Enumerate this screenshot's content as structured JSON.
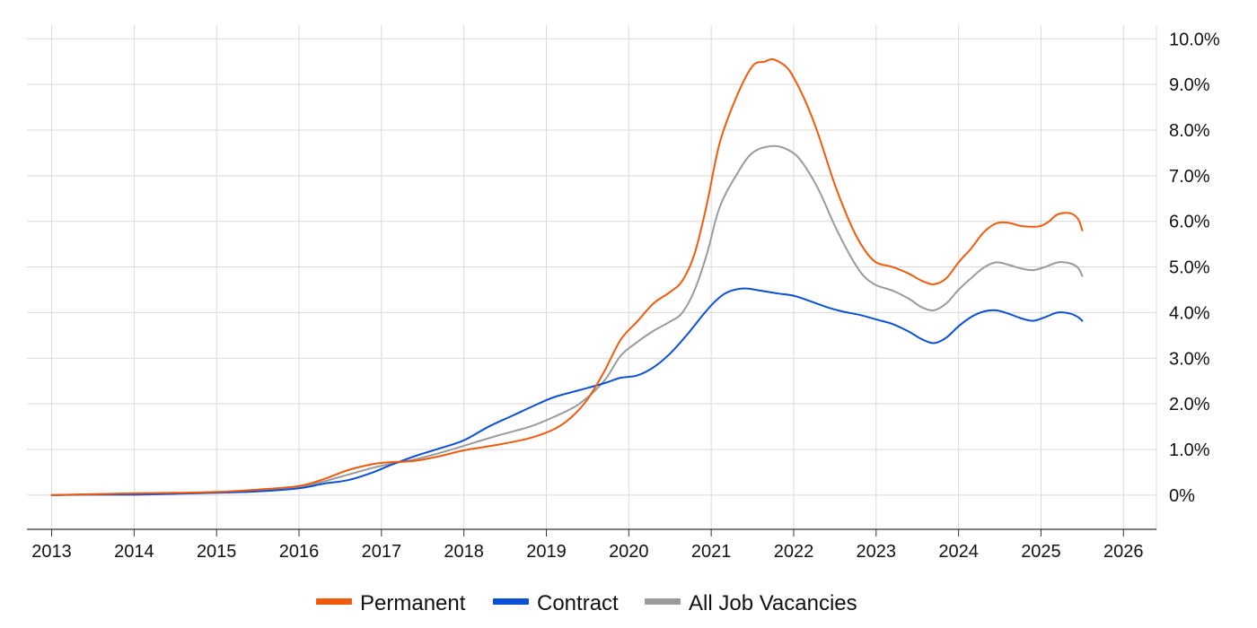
{
  "chart_data": {
    "type": "line",
    "title": "",
    "xlabel": "",
    "ylabel": "",
    "xlim": [
      2012.7,
      2026.4
    ],
    "ylim": [
      -0.75,
      10.3
    ],
    "x_ticks": [
      2013,
      2014,
      2015,
      2016,
      2017,
      2018,
      2019,
      2020,
      2021,
      2022,
      2023,
      2024,
      2025,
      2026
    ],
    "x_tick_labels": [
      "2013",
      "2014",
      "2015",
      "2016",
      "2017",
      "2018",
      "2019",
      "2020",
      "2021",
      "2022",
      "2023",
      "2024",
      "2025",
      "2026"
    ],
    "y_ticks": [
      0,
      1,
      2,
      3,
      4,
      5,
      6,
      7,
      8,
      9,
      10
    ],
    "y_tick_labels": [
      "0%",
      "1.0%",
      "2.0%",
      "3.0%",
      "4.0%",
      "5.0%",
      "6.0%",
      "7.0%",
      "8.0%",
      "9.0%",
      "10.0%"
    ],
    "y_axis_side": "right",
    "grid": true,
    "legend_position": "bottom-center",
    "series": [
      {
        "name": "Permanent",
        "color": "#f15a0a",
        "points": [
          [
            2013.0,
            0.0
          ],
          [
            2013.5,
            0.02
          ],
          [
            2014.0,
            0.04
          ],
          [
            2014.5,
            0.05
          ],
          [
            2015.0,
            0.07
          ],
          [
            2015.5,
            0.12
          ],
          [
            2016.0,
            0.2
          ],
          [
            2016.3,
            0.35
          ],
          [
            2016.6,
            0.55
          ],
          [
            2016.9,
            0.68
          ],
          [
            2017.1,
            0.72
          ],
          [
            2017.4,
            0.75
          ],
          [
            2017.7,
            0.85
          ],
          [
            2018.0,
            0.98
          ],
          [
            2018.4,
            1.1
          ],
          [
            2018.8,
            1.25
          ],
          [
            2019.1,
            1.45
          ],
          [
            2019.3,
            1.7
          ],
          [
            2019.5,
            2.1
          ],
          [
            2019.7,
            2.7
          ],
          [
            2019.9,
            3.4
          ],
          [
            2020.1,
            3.8
          ],
          [
            2020.3,
            4.2
          ],
          [
            2020.5,
            4.45
          ],
          [
            2020.65,
            4.7
          ],
          [
            2020.8,
            5.3
          ],
          [
            2020.95,
            6.4
          ],
          [
            2021.1,
            7.7
          ],
          [
            2021.3,
            8.7
          ],
          [
            2021.5,
            9.4
          ],
          [
            2021.65,
            9.5
          ],
          [
            2021.75,
            9.55
          ],
          [
            2021.9,
            9.4
          ],
          [
            2022.0,
            9.15
          ],
          [
            2022.15,
            8.6
          ],
          [
            2022.3,
            7.9
          ],
          [
            2022.5,
            6.8
          ],
          [
            2022.7,
            5.9
          ],
          [
            2022.85,
            5.4
          ],
          [
            2023.0,
            5.1
          ],
          [
            2023.2,
            5.0
          ],
          [
            2023.4,
            4.85
          ],
          [
            2023.55,
            4.7
          ],
          [
            2023.7,
            4.62
          ],
          [
            2023.85,
            4.75
          ],
          [
            2024.0,
            5.1
          ],
          [
            2024.15,
            5.4
          ],
          [
            2024.3,
            5.75
          ],
          [
            2024.45,
            5.95
          ],
          [
            2024.6,
            5.97
          ],
          [
            2024.75,
            5.9
          ],
          [
            2024.9,
            5.88
          ],
          [
            2025.0,
            5.9
          ],
          [
            2025.1,
            6.0
          ],
          [
            2025.2,
            6.15
          ],
          [
            2025.35,
            6.18
          ],
          [
            2025.45,
            6.05
          ],
          [
            2025.5,
            5.8
          ]
        ]
      },
      {
        "name": "Contract",
        "color": "#0a50d7",
        "points": [
          [
            2013.0,
            0.0
          ],
          [
            2013.5,
            0.01
          ],
          [
            2014.0,
            0.01
          ],
          [
            2014.5,
            0.03
          ],
          [
            2015.0,
            0.05
          ],
          [
            2015.5,
            0.08
          ],
          [
            2016.0,
            0.15
          ],
          [
            2016.3,
            0.25
          ],
          [
            2016.6,
            0.33
          ],
          [
            2016.9,
            0.5
          ],
          [
            2017.1,
            0.65
          ],
          [
            2017.4,
            0.85
          ],
          [
            2017.7,
            1.02
          ],
          [
            2018.0,
            1.2
          ],
          [
            2018.3,
            1.5
          ],
          [
            2018.6,
            1.75
          ],
          [
            2018.9,
            2.0
          ],
          [
            2019.1,
            2.15
          ],
          [
            2019.4,
            2.3
          ],
          [
            2019.7,
            2.45
          ],
          [
            2019.9,
            2.57
          ],
          [
            2020.1,
            2.62
          ],
          [
            2020.3,
            2.8
          ],
          [
            2020.5,
            3.1
          ],
          [
            2020.7,
            3.5
          ],
          [
            2020.9,
            3.95
          ],
          [
            2021.05,
            4.25
          ],
          [
            2021.2,
            4.45
          ],
          [
            2021.4,
            4.53
          ],
          [
            2021.6,
            4.48
          ],
          [
            2021.8,
            4.42
          ],
          [
            2022.0,
            4.37
          ],
          [
            2022.2,
            4.25
          ],
          [
            2022.4,
            4.12
          ],
          [
            2022.6,
            4.02
          ],
          [
            2022.8,
            3.95
          ],
          [
            2023.0,
            3.85
          ],
          [
            2023.2,
            3.75
          ],
          [
            2023.4,
            3.58
          ],
          [
            2023.55,
            3.42
          ],
          [
            2023.7,
            3.33
          ],
          [
            2023.85,
            3.45
          ],
          [
            2024.0,
            3.7
          ],
          [
            2024.15,
            3.9
          ],
          [
            2024.3,
            4.02
          ],
          [
            2024.45,
            4.05
          ],
          [
            2024.6,
            3.98
          ],
          [
            2024.75,
            3.88
          ],
          [
            2024.9,
            3.82
          ],
          [
            2025.05,
            3.9
          ],
          [
            2025.2,
            4.0
          ],
          [
            2025.35,
            3.98
          ],
          [
            2025.45,
            3.9
          ],
          [
            2025.5,
            3.82
          ]
        ]
      },
      {
        "name": "All Job Vacancies",
        "color": "#9a9a9a",
        "points": [
          [
            2013.0,
            0.0
          ],
          [
            2013.5,
            0.02
          ],
          [
            2014.0,
            0.03
          ],
          [
            2014.5,
            0.04
          ],
          [
            2015.0,
            0.06
          ],
          [
            2015.5,
            0.1
          ],
          [
            2016.0,
            0.18
          ],
          [
            2016.3,
            0.3
          ],
          [
            2016.6,
            0.45
          ],
          [
            2016.9,
            0.6
          ],
          [
            2017.1,
            0.68
          ],
          [
            2017.4,
            0.78
          ],
          [
            2017.7,
            0.92
          ],
          [
            2018.0,
            1.08
          ],
          [
            2018.4,
            1.3
          ],
          [
            2018.8,
            1.5
          ],
          [
            2019.1,
            1.72
          ],
          [
            2019.4,
            2.0
          ],
          [
            2019.7,
            2.5
          ],
          [
            2019.9,
            3.05
          ],
          [
            2020.1,
            3.35
          ],
          [
            2020.3,
            3.6
          ],
          [
            2020.5,
            3.8
          ],
          [
            2020.65,
            4.0
          ],
          [
            2020.8,
            4.5
          ],
          [
            2020.95,
            5.3
          ],
          [
            2021.1,
            6.3
          ],
          [
            2021.3,
            7.0
          ],
          [
            2021.5,
            7.5
          ],
          [
            2021.75,
            7.65
          ],
          [
            2021.95,
            7.55
          ],
          [
            2022.1,
            7.3
          ],
          [
            2022.3,
            6.7
          ],
          [
            2022.5,
            5.9
          ],
          [
            2022.7,
            5.2
          ],
          [
            2022.85,
            4.8
          ],
          [
            2023.0,
            4.6
          ],
          [
            2023.2,
            4.48
          ],
          [
            2023.4,
            4.3
          ],
          [
            2023.55,
            4.12
          ],
          [
            2023.7,
            4.05
          ],
          [
            2023.85,
            4.2
          ],
          [
            2024.0,
            4.5
          ],
          [
            2024.15,
            4.75
          ],
          [
            2024.3,
            4.98
          ],
          [
            2024.45,
            5.1
          ],
          [
            2024.6,
            5.05
          ],
          [
            2024.75,
            4.97
          ],
          [
            2024.9,
            4.93
          ],
          [
            2025.05,
            5.0
          ],
          [
            2025.2,
            5.1
          ],
          [
            2025.35,
            5.08
          ],
          [
            2025.45,
            4.98
          ],
          [
            2025.5,
            4.8
          ]
        ]
      }
    ]
  }
}
